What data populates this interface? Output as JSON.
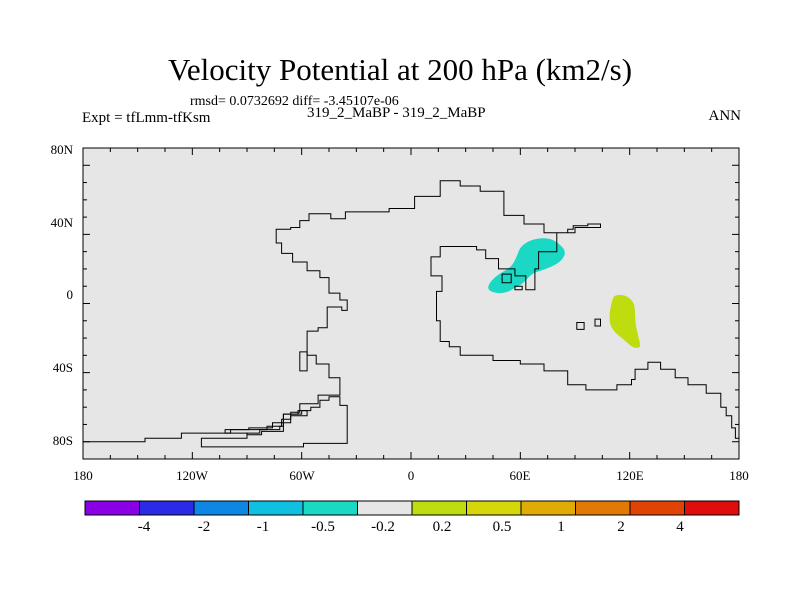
{
  "title": "Velocity Potential at 200 hPa (km2/s)",
  "stats": "rmsd= 0.0732692 diff= -3.45107e-06",
  "expt": "Expt = tfLmm-tfKsm",
  "cases": "319_2_MaBP - 319_2_MaBP",
  "season": "ANN",
  "map": {
    "lon_range": [
      -180,
      180
    ],
    "lat_range": [
      -90,
      90
    ],
    "lat_tick_labels": [
      "80N",
      "40N",
      "0",
      "40S",
      "80S"
    ],
    "lat_ticks": [
      80,
      40,
      0,
      -40,
      -80
    ],
    "lon_tick_labels": [
      "180",
      "120W",
      "60W",
      "0",
      "60E",
      "120E",
      "180"
    ],
    "lon_ticks": [
      -180,
      -120,
      -60,
      0,
      60,
      120,
      180
    ],
    "background_color": "#e6e6e6",
    "coastline": [
      [
        -180,
        -80
      ],
      [
        -146,
        -80
      ],
      [
        -146,
        -78
      ],
      [
        -126,
        -78
      ],
      [
        -126,
        -75
      ],
      [
        -99,
        -75
      ],
      [
        -99,
        -73
      ],
      [
        -89,
        -73
      ],
      [
        -89,
        -72
      ],
      [
        -76,
        -72
      ],
      [
        -76,
        -69
      ],
      [
        -66,
        -69
      ],
      [
        -66,
        -63
      ],
      [
        -61,
        -63
      ],
      [
        -61,
        -58
      ],
      [
        -51,
        -58
      ],
      [
        -51,
        -53
      ],
      [
        -39,
        -53
      ],
      [
        -39,
        -43
      ],
      [
        -45,
        -43
      ],
      [
        -45,
        -35
      ],
      [
        -52,
        -35
      ],
      [
        -52,
        -30
      ],
      [
        -57,
        -30
      ],
      [
        -57,
        -16
      ],
      [
        -51,
        -16
      ],
      [
        -51,
        -14
      ],
      [
        -46,
        -14
      ],
      [
        -46,
        -2
      ],
      [
        -38,
        -2
      ],
      [
        -38,
        -4
      ],
      [
        -35,
        -4
      ],
      [
        -35,
        2
      ],
      [
        -39,
        2
      ],
      [
        -39,
        6
      ],
      [
        -45,
        6
      ],
      [
        -45,
        15
      ],
      [
        -50,
        15
      ],
      [
        -50,
        19
      ],
      [
        -57,
        19
      ],
      [
        -57,
        24
      ],
      [
        -65,
        24
      ],
      [
        -65,
        29
      ],
      [
        -71,
        29
      ],
      [
        -71,
        35
      ],
      [
        -74,
        35
      ],
      [
        -74,
        43
      ],
      [
        -66,
        43
      ],
      [
        -66,
        44
      ],
      [
        -61,
        44
      ],
      [
        -61,
        48
      ],
      [
        -56,
        48
      ],
      [
        -56,
        52
      ],
      [
        -44,
        52
      ],
      [
        -44,
        49
      ],
      [
        -36,
        49
      ],
      [
        -36,
        53
      ],
      [
        -12,
        53
      ],
      [
        -12,
        55
      ],
      [
        2,
        55
      ],
      [
        2,
        62
      ],
      [
        16,
        62
      ],
      [
        16,
        71
      ],
      [
        27,
        71
      ],
      [
        27,
        68
      ],
      [
        38,
        68
      ],
      [
        38,
        65
      ],
      [
        51,
        65
      ],
      [
        51,
        51
      ],
      [
        62,
        51
      ],
      [
        62,
        46
      ],
      [
        73,
        46
      ],
      [
        73,
        41
      ],
      [
        86,
        41
      ],
      [
        86,
        43
      ],
      [
        89,
        43
      ],
      [
        89,
        45
      ],
      [
        97,
        45
      ],
      [
        97,
        46
      ],
      [
        104,
        46
      ],
      [
        104,
        44
      ],
      [
        90,
        44
      ],
      [
        90,
        41
      ],
      [
        80,
        41
      ],
      [
        80,
        30
      ],
      [
        70,
        30
      ],
      [
        70,
        20
      ],
      [
        68,
        20
      ],
      [
        68,
        8
      ],
      [
        63,
        8
      ],
      [
        63,
        16
      ],
      [
        57,
        16
      ],
      [
        57,
        20
      ],
      [
        48,
        20
      ],
      [
        48,
        26
      ],
      [
        41,
        26
      ],
      [
        41,
        31
      ],
      [
        36,
        31
      ],
      [
        36,
        33
      ],
      [
        16,
        33
      ],
      [
        16,
        27
      ],
      [
        11,
        27
      ],
      [
        11,
        16
      ],
      [
        17,
        16
      ],
      [
        17,
        7
      ],
      [
        14,
        7
      ],
      [
        14,
        -10
      ],
      [
        16,
        -10
      ],
      [
        16,
        -22
      ],
      [
        21,
        -22
      ],
      [
        21,
        -25
      ],
      [
        27,
        -25
      ],
      [
        27,
        -30
      ],
      [
        45,
        -30
      ],
      [
        45,
        -33
      ],
      [
        60,
        -33
      ],
      [
        60,
        -35
      ],
      [
        73,
        -35
      ],
      [
        73,
        -39
      ],
      [
        86,
        -39
      ],
      [
        86,
        -47
      ],
      [
        96,
        -47
      ],
      [
        96,
        -50
      ],
      [
        113,
        -50
      ],
      [
        113,
        -47
      ],
      [
        121,
        -47
      ],
      [
        121,
        -44
      ],
      [
        123,
        -44
      ],
      [
        123,
        -38
      ],
      [
        130,
        -38
      ],
      [
        130,
        -34
      ],
      [
        137,
        -34
      ],
      [
        137,
        -38
      ],
      [
        145,
        -38
      ],
      [
        145,
        -43
      ],
      [
        152,
        -43
      ],
      [
        152,
        -47
      ],
      [
        162,
        -47
      ],
      [
        162,
        -52
      ],
      [
        170,
        -52
      ],
      [
        170,
        -60
      ],
      [
        173,
        -60
      ],
      [
        173,
        -65
      ],
      [
        176,
        -65
      ],
      [
        176,
        -72
      ],
      [
        178,
        -72
      ],
      [
        178,
        -78
      ],
      [
        180,
        -78
      ]
    ],
    "islands": [
      [
        [
          -115,
          -81
        ],
        [
          -115,
          -83
        ],
        [
          -59,
          -83
        ],
        [
          -59,
          -81
        ],
        [
          -35,
          -81
        ],
        [
          -35,
          -59
        ],
        [
          -39,
          -59
        ],
        [
          -39,
          -54
        ],
        [
          -45,
          -54
        ],
        [
          -45,
          -56
        ],
        [
          -50,
          -56
        ],
        [
          -50,
          -60
        ],
        [
          -55,
          -60
        ],
        [
          -55,
          -62
        ],
        [
          -62,
          -62
        ],
        [
          -62,
          -64
        ],
        [
          -70,
          -64
        ],
        [
          -70,
          -71
        ],
        [
          -72,
          -71
        ],
        [
          -72,
          -73
        ],
        [
          -83,
          -73
        ],
        [
          -83,
          -75
        ],
        [
          -90,
          -75
        ],
        [
          -90,
          -78
        ],
        [
          -115,
          -78
        ],
        [
          -115,
          -81
        ]
      ],
      [
        [
          -102,
          -73
        ],
        [
          -102,
          -75
        ],
        [
          -90,
          -75
        ],
        [
          -90,
          -76
        ],
        [
          -82,
          -76
        ],
        [
          -82,
          -74
        ],
        [
          -70,
          -74
        ],
        [
          -70,
          -64
        ],
        [
          -60,
          -64
        ],
        [
          -60,
          -62
        ],
        [
          -57,
          -62
        ],
        [
          -57,
          -65
        ],
        [
          -66,
          -65
        ],
        [
          -66,
          -67
        ],
        [
          -71,
          -67
        ],
        [
          -71,
          -71
        ],
        [
          -79,
          -71
        ],
        [
          -79,
          -73
        ],
        [
          -102,
          -73
        ]
      ],
      [
        [
          -61,
          -28
        ],
        [
          -57,
          -28
        ],
        [
          -57,
          -39
        ],
        [
          -61,
          -39
        ],
        [
          -61,
          -28
        ]
      ],
      [
        [
          91,
          -11
        ],
        [
          91,
          -15
        ],
        [
          95,
          -15
        ],
        [
          95,
          -11
        ],
        [
          91,
          -11
        ]
      ],
      [
        [
          101,
          -9
        ],
        [
          104,
          -9
        ],
        [
          104,
          -13
        ],
        [
          101,
          -13
        ],
        [
          101,
          -9
        ]
      ],
      [
        [
          50,
          17
        ],
        [
          50,
          12
        ],
        [
          55,
          12
        ],
        [
          55,
          17
        ],
        [
          50,
          17
        ]
      ],
      [
        [
          57,
          10
        ],
        [
          57,
          8
        ],
        [
          61,
          8
        ],
        [
          61,
          10
        ],
        [
          57,
          10
        ]
      ]
    ],
    "contours": [
      {
        "level": "-0.5 to -0.2",
        "color": "#1ad8c3",
        "points": [
          [
            43,
            12
          ],
          [
            48,
            17
          ],
          [
            55,
            21
          ],
          [
            58,
            27
          ],
          [
            60,
            33
          ],
          [
            66,
            37
          ],
          [
            73,
            38
          ],
          [
            78,
            37
          ],
          [
            82,
            34
          ],
          [
            85,
            30
          ],
          [
            83,
            25
          ],
          [
            77,
            21
          ],
          [
            71,
            19
          ],
          [
            66,
            17
          ],
          [
            62,
            12
          ],
          [
            57,
            9
          ],
          [
            52,
            6
          ],
          [
            46,
            6
          ],
          [
            42,
            8
          ]
        ]
      },
      {
        "level": "0.2 to 0.5",
        "color": "#bfdc0f",
        "points": [
          [
            111,
            4
          ],
          [
            113,
            5
          ],
          [
            116,
            5
          ],
          [
            119,
            4
          ],
          [
            122,
            1
          ],
          [
            123,
            -3
          ],
          [
            123,
            -10
          ],
          [
            124,
            -16
          ],
          [
            125,
            -20
          ],
          [
            126,
            -25
          ],
          [
            124,
            -26
          ],
          [
            121,
            -25
          ],
          [
            117,
            -21
          ],
          [
            112,
            -17
          ],
          [
            109,
            -12
          ],
          [
            109,
            -5
          ],
          [
            110,
            0
          ]
        ]
      }
    ]
  },
  "colorbar": {
    "colors": [
      "#8a00e6",
      "#2b2be6",
      "#0e86e3",
      "#0fc0e0",
      "#1ad8c3",
      "#e6e6e6",
      "#bfdc0f",
      "#d6d70b",
      "#e0ab06",
      "#e07a04",
      "#e04404",
      "#e00d0d"
    ],
    "labels": [
      "-4",
      "-2",
      "-1",
      "-0.5",
      "-0.2",
      "0.2",
      "0.5",
      "1",
      "2",
      "4"
    ]
  }
}
